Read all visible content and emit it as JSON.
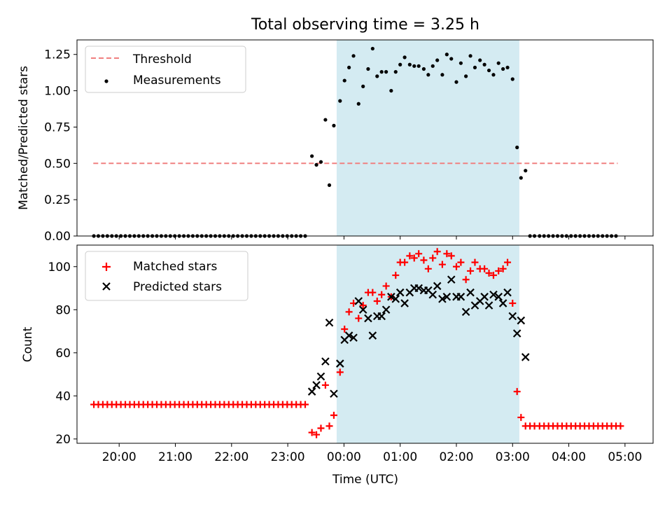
{
  "chart_data": [
    {
      "type": "scatter",
      "title": "Total observing time = 3.25 h",
      "xlabel": "",
      "ylabel": "Matched/Predicted stars",
      "ylim": [
        0,
        1.35
      ],
      "yticks": [
        0,
        0.25,
        0.5,
        0.75,
        1.0,
        1.25
      ],
      "ytick_labels": [
        "0.00",
        "0.25",
        "0.50",
        "0.75",
        "1.00",
        "1.25"
      ],
      "x_axis": "time",
      "xlim_hours": [
        19.25,
        29.5
      ],
      "shaded_interval_hours": [
        23.87,
        27.12
      ],
      "shade_color": "#add8e6",
      "legend_position": "top-left",
      "series": [
        {
          "name": "Threshold",
          "style": "dashed-line",
          "color": "#f08080",
          "x": [
            19.54,
            28.87
          ],
          "y": [
            0.5,
            0.5
          ]
        },
        {
          "name": "Measurements",
          "style": "dot",
          "color": "#000000",
          "x": [
            19.55,
            19.63,
            19.71,
            19.79,
            19.87,
            19.95,
            20.03,
            20.11,
            20.19,
            20.27,
            20.35,
            20.43,
            20.51,
            20.59,
            20.67,
            20.75,
            20.83,
            20.91,
            20.99,
            21.07,
            21.15,
            21.23,
            21.31,
            21.39,
            21.47,
            21.55,
            21.63,
            21.71,
            21.79,
            21.87,
            21.95,
            22.03,
            22.11,
            22.19,
            22.27,
            22.35,
            22.43,
            22.51,
            22.59,
            22.67,
            22.75,
            22.83,
            22.91,
            22.99,
            23.07,
            23.15,
            23.23,
            23.31,
            23.43,
            23.51,
            23.59,
            23.67,
            23.74,
            23.82,
            23.93,
            24.01,
            24.09,
            24.17,
            24.26,
            24.34,
            24.43,
            24.51,
            24.59,
            24.67,
            24.75,
            24.84,
            24.92,
            25.0,
            25.08,
            25.17,
            25.25,
            25.33,
            25.42,
            25.5,
            25.58,
            25.66,
            25.75,
            25.83,
            25.91,
            26.0,
            26.08,
            26.17,
            26.25,
            26.33,
            26.42,
            26.5,
            26.58,
            26.66,
            26.75,
            26.83,
            26.91,
            27.0,
            27.08,
            27.15,
            27.23,
            27.31,
            27.39,
            27.48,
            27.56,
            27.64,
            27.72,
            27.8,
            27.88,
            27.96,
            28.04,
            28.12,
            28.2,
            28.28,
            28.36,
            28.44,
            28.52,
            28.6,
            28.68,
            28.76,
            28.84
          ],
          "y": [
            0,
            0,
            0,
            0,
            0,
            0,
            0,
            0,
            0,
            0,
            0,
            0,
            0,
            0,
            0,
            0,
            0,
            0,
            0,
            0,
            0,
            0,
            0,
            0,
            0,
            0,
            0,
            0,
            0,
            0,
            0,
            0,
            0,
            0,
            0,
            0,
            0,
            0,
            0,
            0,
            0,
            0,
            0,
            0,
            0,
            0,
            0,
            0,
            0.55,
            0.49,
            0.51,
            0.8,
            0.35,
            0.76,
            0.93,
            1.07,
            1.16,
            1.24,
            0.91,
            1.03,
            1.15,
            1.29,
            1.1,
            1.13,
            1.13,
            1.0,
            1.13,
            1.18,
            1.23,
            1.18,
            1.17,
            1.17,
            1.15,
            1.11,
            1.17,
            1.21,
            1.11,
            1.25,
            1.22,
            1.06,
            1.19,
            1.1,
            1.24,
            1.16,
            1.21,
            1.18,
            1.14,
            1.11,
            1.19,
            1.15,
            1.16,
            1.08,
            0.61,
            0.4,
            0.45,
            0,
            0,
            0,
            0,
            0,
            0,
            0,
            0,
            0,
            0,
            0,
            0,
            0,
            0,
            0,
            0,
            0,
            0,
            0,
            0
          ]
        }
      ]
    },
    {
      "type": "scatter",
      "title": "",
      "xlabel": "Time (UTC)",
      "ylabel": "Count",
      "ylim": [
        18,
        110
      ],
      "yticks": [
        20,
        40,
        60,
        80,
        100
      ],
      "ytick_labels": [
        "20",
        "40",
        "60",
        "80",
        "100"
      ],
      "x_axis": "time",
      "xlim_hours": [
        19.25,
        29.5
      ],
      "xticks_hours": [
        20,
        21,
        22,
        23,
        24,
        25,
        26,
        27,
        28,
        29
      ],
      "xtick_labels": [
        "20:00",
        "21:00",
        "22:00",
        "23:00",
        "00:00",
        "01:00",
        "02:00",
        "03:00",
        "04:00",
        "05:00"
      ],
      "shaded_interval_hours": [
        23.87,
        27.12
      ],
      "shade_color": "#add8e6",
      "legend_position": "top-left",
      "series": [
        {
          "name": "Matched stars",
          "marker": "plus",
          "color": "#ff0000",
          "x": [
            19.55,
            19.63,
            19.71,
            19.79,
            19.87,
            19.95,
            20.03,
            20.11,
            20.19,
            20.27,
            20.35,
            20.43,
            20.51,
            20.59,
            20.67,
            20.75,
            20.83,
            20.91,
            20.99,
            21.07,
            21.15,
            21.23,
            21.31,
            21.39,
            21.47,
            21.55,
            21.63,
            21.71,
            21.79,
            21.87,
            21.95,
            22.03,
            22.11,
            22.19,
            22.27,
            22.35,
            22.43,
            22.51,
            22.59,
            22.67,
            22.75,
            22.83,
            22.91,
            22.99,
            23.07,
            23.15,
            23.23,
            23.31,
            23.43,
            23.51,
            23.59,
            23.67,
            23.74,
            23.82,
            23.93,
            24.01,
            24.09,
            24.17,
            24.26,
            24.34,
            24.43,
            24.51,
            24.59,
            24.67,
            24.75,
            24.84,
            24.92,
            25.0,
            25.08,
            25.17,
            25.25,
            25.33,
            25.42,
            25.5,
            25.58,
            25.66,
            25.75,
            25.83,
            25.91,
            26.0,
            26.08,
            26.17,
            26.25,
            26.33,
            26.42,
            26.5,
            26.58,
            26.66,
            26.75,
            26.83,
            26.91,
            27.0,
            27.08,
            27.15,
            27.23,
            27.31,
            27.39,
            27.48,
            27.56,
            27.64,
            27.72,
            27.8,
            27.88,
            27.96,
            28.04,
            28.12,
            28.2,
            28.28,
            28.36,
            28.44,
            28.52,
            28.6,
            28.68,
            28.76,
            28.84,
            28.92
          ],
          "y": [
            36,
            36,
            36,
            36,
            36,
            36,
            36,
            36,
            36,
            36,
            36,
            36,
            36,
            36,
            36,
            36,
            36,
            36,
            36,
            36,
            36,
            36,
            36,
            36,
            36,
            36,
            36,
            36,
            36,
            36,
            36,
            36,
            36,
            36,
            36,
            36,
            36,
            36,
            36,
            36,
            36,
            36,
            36,
            36,
            36,
            36,
            36,
            36,
            23,
            22,
            25,
            45,
            26,
            31,
            51,
            71,
            79,
            83,
            76,
            82,
            88,
            88,
            84,
            87,
            91,
            86,
            96,
            102,
            102,
            105,
            104,
            106,
            103,
            99,
            104,
            107,
            101,
            106,
            105,
            100,
            102,
            94,
            98,
            102,
            99,
            99,
            97,
            96,
            98,
            99,
            102,
            83,
            42,
            30,
            26,
            26,
            26,
            26,
            26,
            26,
            26,
            26,
            26,
            26,
            26,
            26,
            26,
            26,
            26,
            26,
            26,
            26,
            26,
            26,
            26,
            26
          ]
        },
        {
          "name": "Predicted stars",
          "marker": "x",
          "color": "#000000",
          "x": [
            23.43,
            23.51,
            23.59,
            23.67,
            23.74,
            23.82,
            23.93,
            24.01,
            24.09,
            24.17,
            24.26,
            24.34,
            24.43,
            24.51,
            24.59,
            24.67,
            24.75,
            24.84,
            24.92,
            25.0,
            25.08,
            25.17,
            25.25,
            25.33,
            25.42,
            25.5,
            25.58,
            25.66,
            25.75,
            25.83,
            25.91,
            26.0,
            26.08,
            26.17,
            26.25,
            26.33,
            26.42,
            26.5,
            26.58,
            26.66,
            26.75,
            26.83,
            26.91,
            27.0,
            27.08,
            27.15,
            27.23
          ],
          "y": [
            42,
            45,
            49,
            56,
            74,
            41,
            55,
            66,
            68,
            67,
            84,
            80,
            76,
            68,
            77,
            77,
            80,
            86,
            85,
            88,
            83,
            88,
            90,
            90,
            89,
            89,
            87,
            91,
            85,
            86,
            94,
            86,
            86,
            79,
            88,
            82,
            84,
            86,
            82,
            87,
            86,
            83,
            88,
            77,
            69,
            75,
            58
          ]
        }
      ]
    }
  ]
}
